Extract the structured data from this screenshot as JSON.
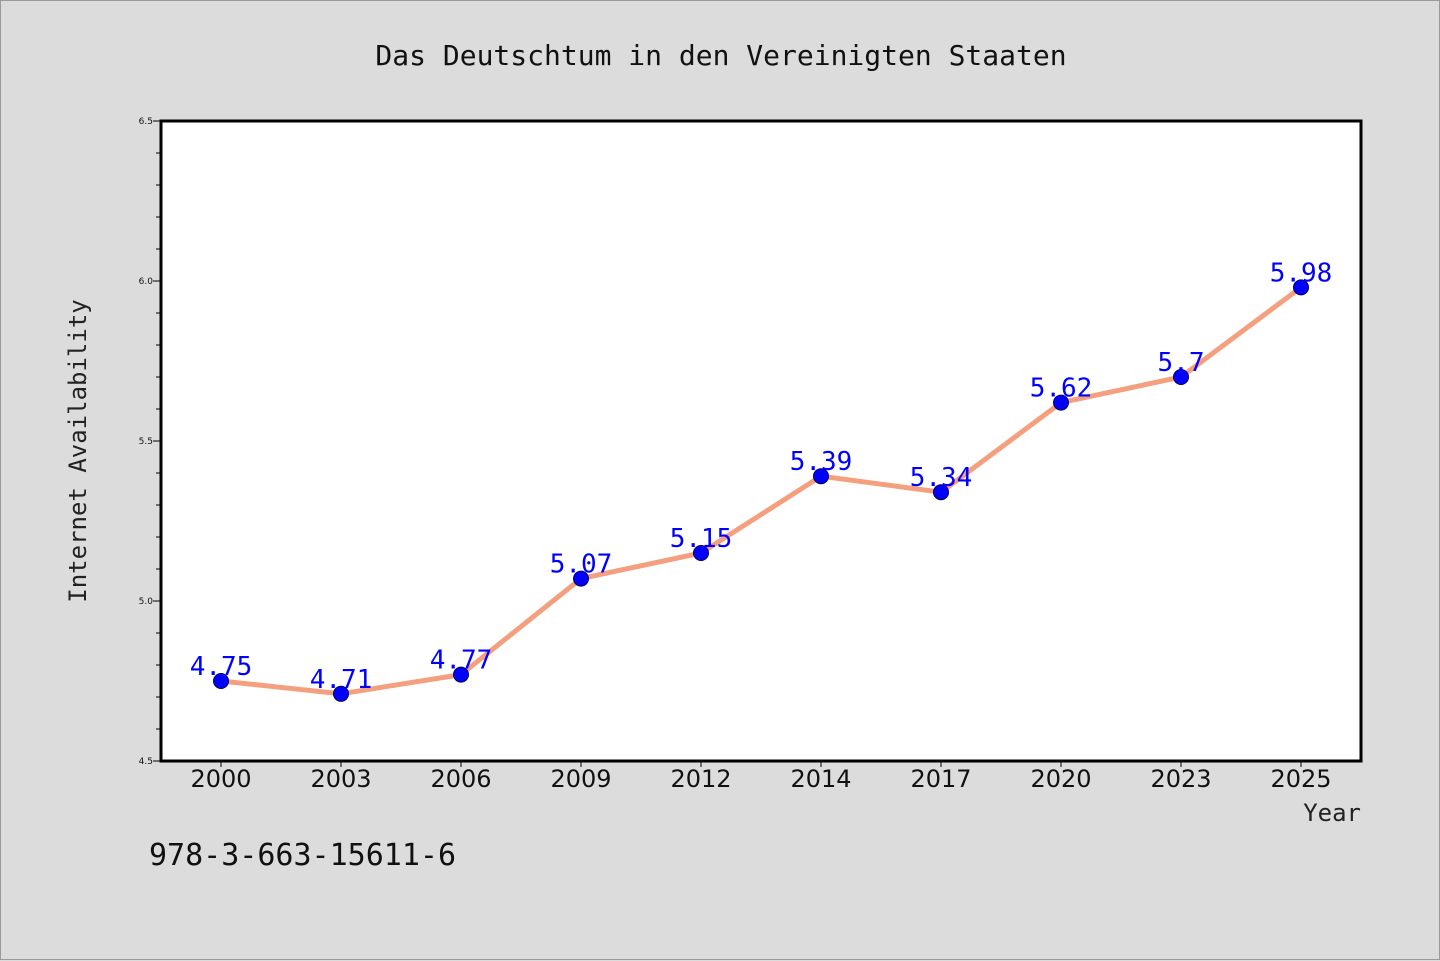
{
  "chart_data": {
    "type": "line",
    "title": "Das Deutschtum in den Vereinigten Staaten",
    "xlabel": "Year",
    "ylabel": "Internet Availability",
    "categories": [
      "2000",
      "2003",
      "2006",
      "2009",
      "2012",
      "2014",
      "2017",
      "2020",
      "2023",
      "2025"
    ],
    "series": [
      {
        "values": [
          4.75,
          4.71,
          4.77,
          5.07,
          5.15,
          5.39,
          5.34,
          5.62,
          5.7,
          5.98
        ],
        "data_labels": [
          "4.75",
          "4.71",
          "4.77",
          "5.07",
          "5.15",
          "5.39",
          "5.34",
          "5.62",
          "5.7",
          "5.98"
        ]
      }
    ],
    "ylim": [
      4.5,
      6.5
    ],
    "yticks": [
      "4.5",
      "5.0",
      "5.5",
      "6.0",
      "6.5"
    ],
    "grid": false,
    "legend": "none",
    "colors": {
      "line": "#f4a07e",
      "marker": "#0000ff",
      "label": "#0000ff"
    }
  },
  "footnote": "978-3-663-15611-6"
}
